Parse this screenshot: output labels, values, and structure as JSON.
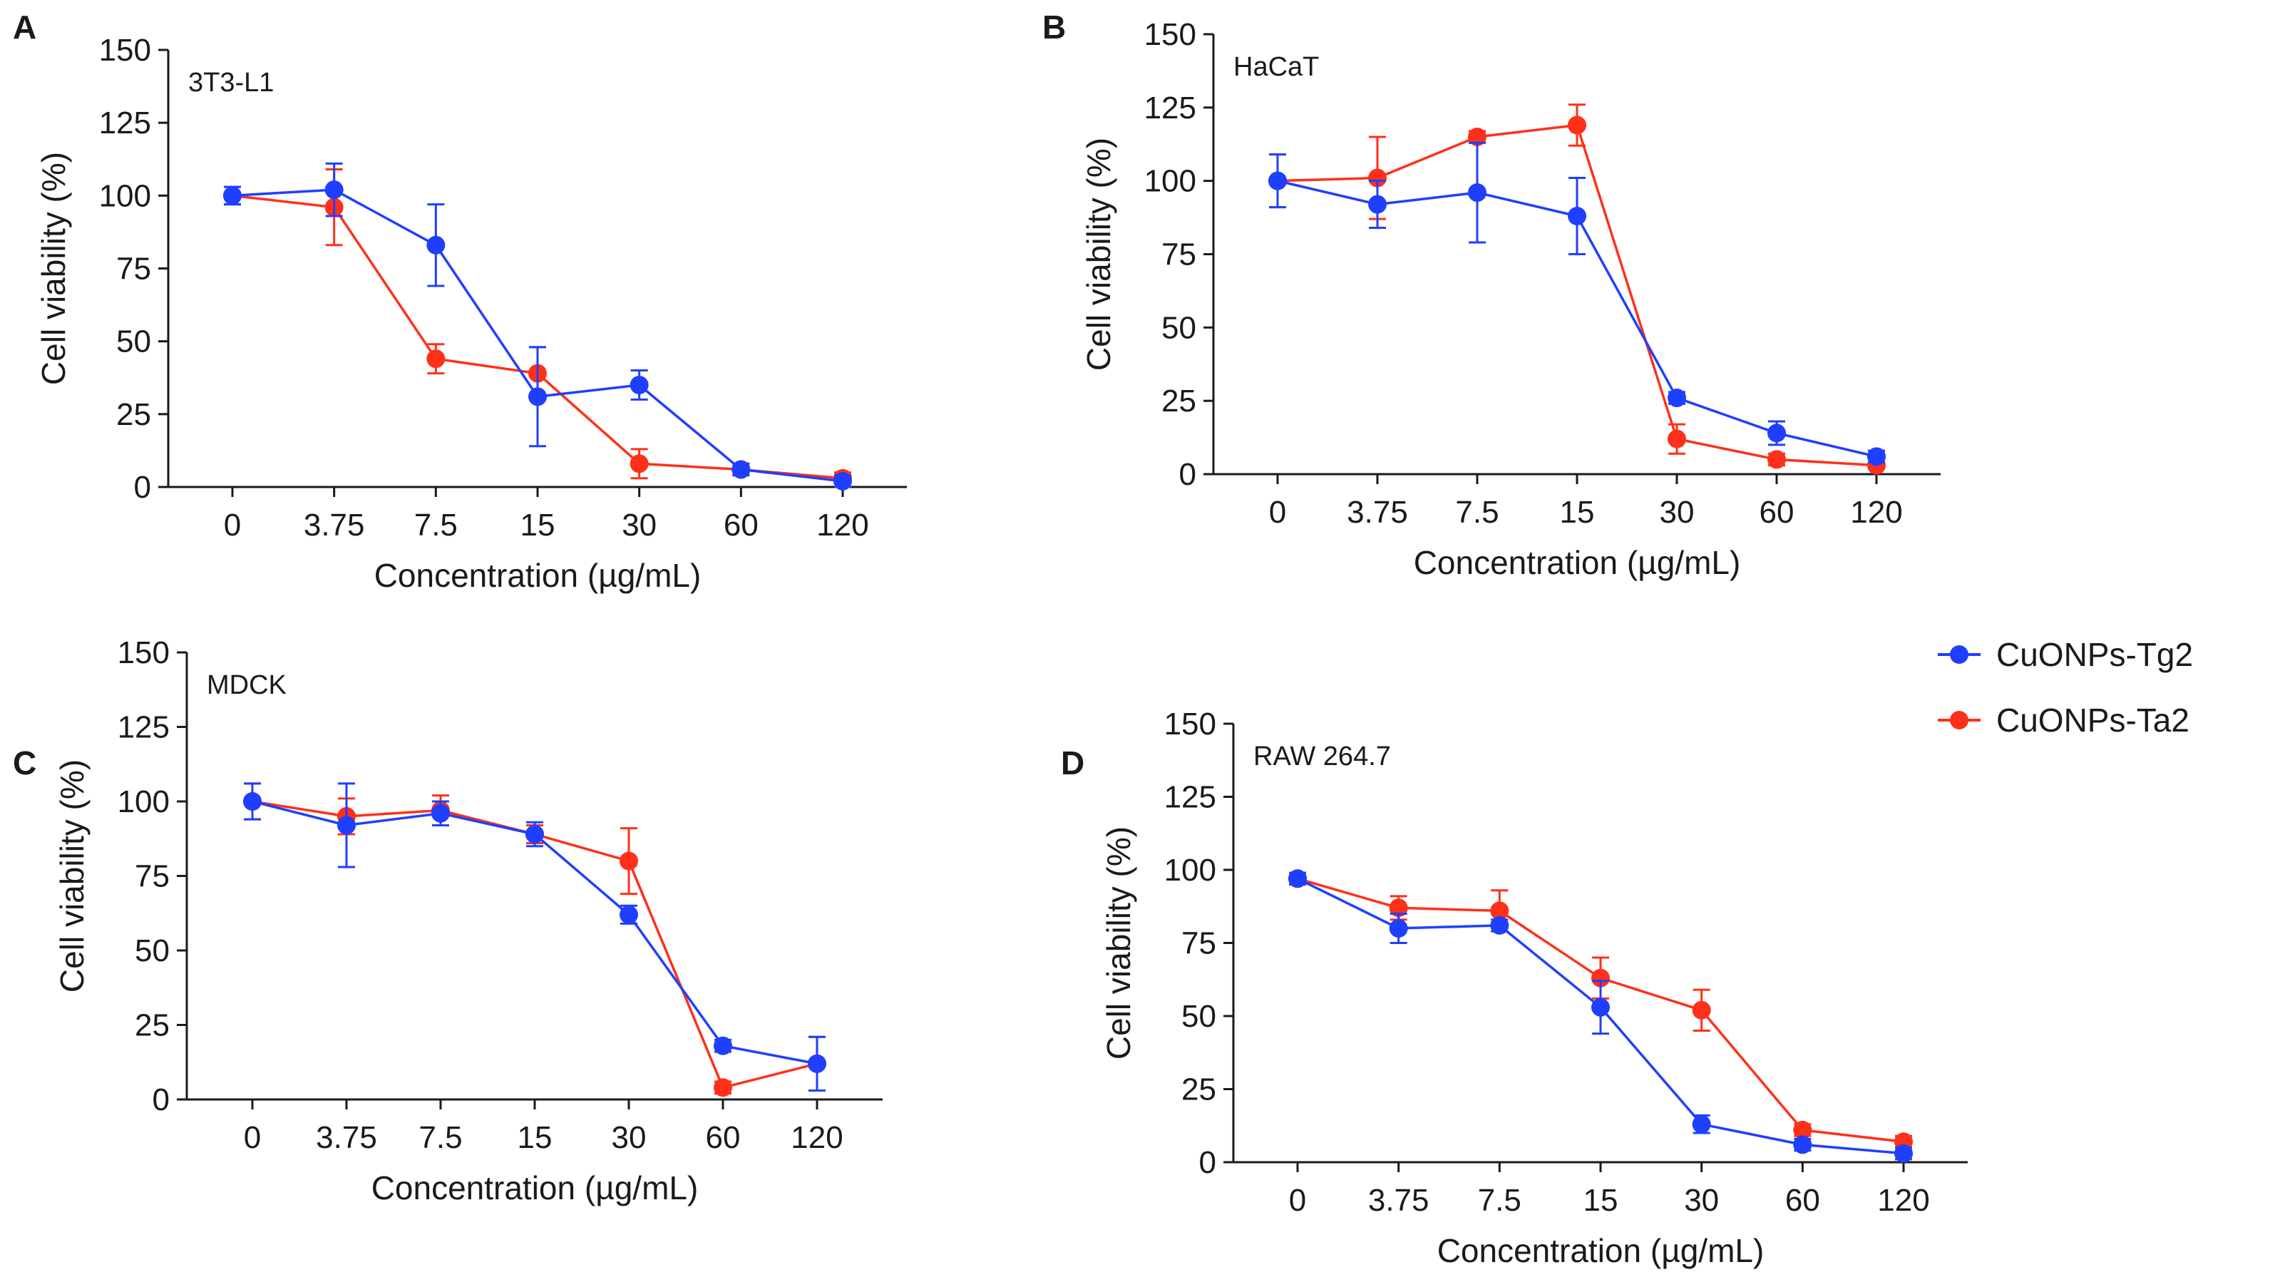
{
  "figure": {
    "legend": [
      {
        "name": "CuONPs-Tg2",
        "color": "#1f3fff"
      },
      {
        "name": "CuONPs-Ta2",
        "color": "#ff3019"
      }
    ]
  },
  "chart_data": [
    {
      "panel": "A",
      "type": "line",
      "title": "3T3-L1",
      "xlabel": "Concentration (µg/mL)",
      "ylabel": "Cell viability (%)",
      "categories": [
        "0",
        "3.75",
        "7.5",
        "15",
        "30",
        "60",
        "120"
      ],
      "ylim": [
        0,
        150
      ],
      "yticks": [
        "0",
        "25",
        "50",
        "75",
        "100",
        "125",
        "150"
      ],
      "series": [
        {
          "name": "CuONPs-Tg2",
          "color": "#1f3fff",
          "values": [
            100,
            102,
            83,
            31,
            35,
            6,
            2
          ],
          "errors": [
            3,
            9,
            14,
            17,
            5,
            2,
            2
          ]
        },
        {
          "name": "CuONPs-Ta2",
          "color": "#ff3019",
          "values": [
            100,
            96,
            44,
            39,
            8,
            6,
            3
          ],
          "errors": [
            3,
            13,
            5,
            9,
            5,
            2,
            2
          ]
        }
      ]
    },
    {
      "panel": "B",
      "type": "line",
      "title": "HaCaT",
      "xlabel": "Concentration (µg/mL)",
      "ylabel": "Cell viability (%)",
      "categories": [
        "0",
        "3.75",
        "7.5",
        "15",
        "30",
        "60",
        "120"
      ],
      "ylim": [
        0,
        150
      ],
      "yticks": [
        "0",
        "25",
        "50",
        "75",
        "100",
        "125",
        "150"
      ],
      "series": [
        {
          "name": "CuONPs-Tg2",
          "color": "#1f3fff",
          "values": [
            100,
            92,
            96,
            88,
            26,
            14,
            6
          ],
          "errors": [
            9,
            8,
            17,
            13,
            2,
            4,
            2
          ]
        },
        {
          "name": "CuONPs-Ta2",
          "color": "#ff3019",
          "values": [
            100,
            101,
            115,
            119,
            12,
            5,
            3
          ],
          "errors": [
            9,
            14,
            2,
            7,
            5,
            2,
            1
          ]
        }
      ]
    },
    {
      "panel": "C",
      "type": "line",
      "title": "MDCK",
      "xlabel": "Concentration (µg/mL)",
      "ylabel": "Cell viability (%)",
      "categories": [
        "0",
        "3.75",
        "7.5",
        "15",
        "30",
        "60",
        "120"
      ],
      "ylim": [
        0,
        150
      ],
      "yticks": [
        "0",
        "25",
        "50",
        "75",
        "100",
        "125",
        "150"
      ],
      "series": [
        {
          "name": "CuONPs-Tg2",
          "color": "#1f3fff",
          "values": [
            100,
            92,
            96,
            89,
            62,
            18,
            12
          ],
          "errors": [
            6,
            14,
            4,
            4,
            3,
            2,
            9
          ]
        },
        {
          "name": "CuONPs-Ta2",
          "color": "#ff3019",
          "values": [
            100,
            95,
            97,
            89,
            80,
            4,
            12
          ],
          "errors": [
            6,
            6,
            5,
            3,
            11,
            2,
            9
          ]
        }
      ]
    },
    {
      "panel": "D",
      "type": "line",
      "title": "RAW 264.7",
      "xlabel": "Concentration (µg/mL)",
      "ylabel": "Cell viability (%)",
      "categories": [
        "0",
        "3.75",
        "7.5",
        "15",
        "30",
        "60",
        "120"
      ],
      "ylim": [
        0,
        150
      ],
      "yticks": [
        "0",
        "25",
        "50",
        "75",
        "100",
        "125",
        "150"
      ],
      "series": [
        {
          "name": "CuONPs-Tg2",
          "color": "#1f3fff",
          "values": [
            97,
            80,
            81,
            53,
            13,
            6,
            3
          ],
          "errors": [
            2,
            5,
            2,
            9,
            3,
            2,
            2
          ]
        },
        {
          "name": "CuONPs-Ta2",
          "color": "#ff3019",
          "values": [
            97,
            87,
            86,
            63,
            52,
            11,
            7
          ],
          "errors": [
            2,
            4,
            7,
            7,
            7,
            2,
            2
          ]
        }
      ]
    }
  ]
}
